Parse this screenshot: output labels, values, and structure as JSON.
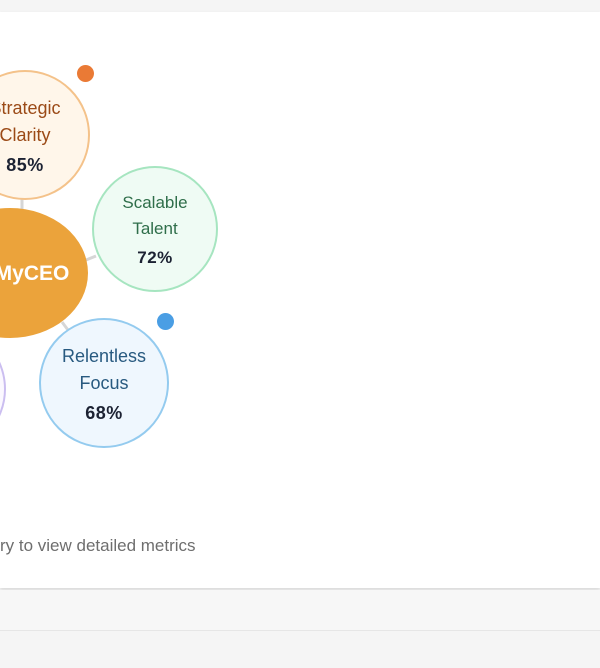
{
  "diagram": {
    "center": {
      "label": "MyCEO"
    },
    "nodes": [
      {
        "id": "strategic",
        "label": "Strategic\nClarity",
        "percent": "85%"
      },
      {
        "id": "scalable",
        "label": "Scalable\nTalent",
        "percent": "72%"
      },
      {
        "id": "relentless",
        "label": "Relentless\nFocus",
        "percent": "68%"
      }
    ],
    "hint": "Click on any category to view detailed metrics"
  },
  "colors": {
    "center_fill": "#eba33b",
    "strategic_fill": "#fff6ea",
    "strategic_border": "#f4c28a",
    "scalable_fill": "#effbf4",
    "scalable_border": "#a6e5c0",
    "relentless_fill": "#eff7fe",
    "relentless_border": "#94cbef",
    "indicator_orange": "#ea7a35",
    "indicator_blue": "#4a9ee4"
  }
}
